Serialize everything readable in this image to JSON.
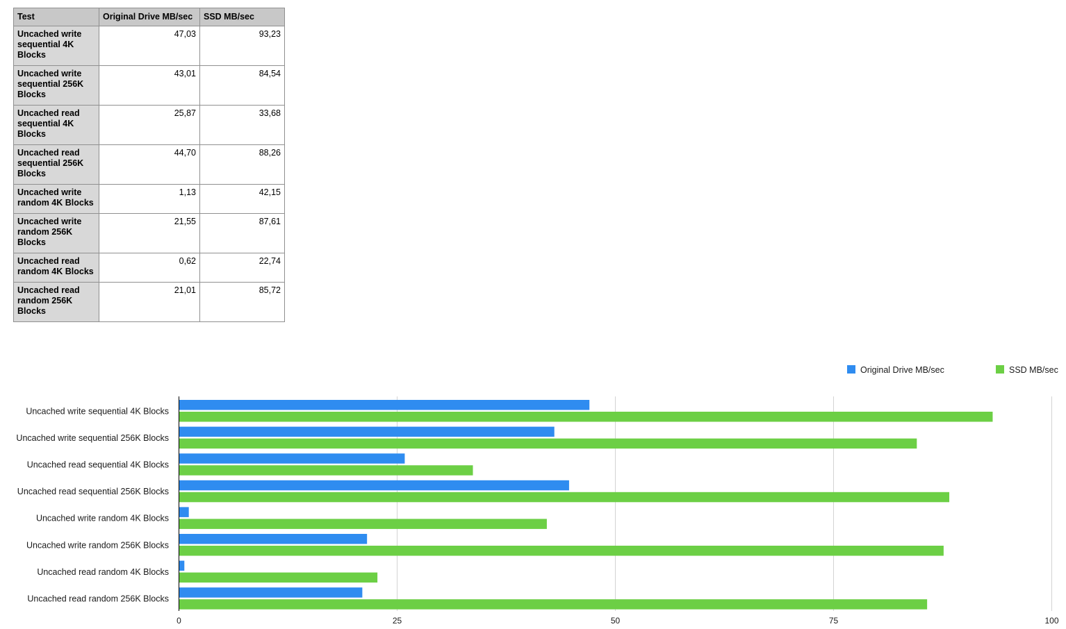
{
  "table": {
    "headers": [
      "Test",
      "Original Drive MB/sec",
      "SSD MB/sec"
    ],
    "rows": [
      {
        "test": [
          "Uncached write",
          "sequential 4K",
          "Blocks"
        ],
        "original": "47,03",
        "ssd": "93,23"
      },
      {
        "test": [
          "Uncached write",
          "sequential 256K",
          "Blocks"
        ],
        "original": "43,01",
        "ssd": "84,54"
      },
      {
        "test": [
          "Uncached read",
          "sequential 4K",
          "Blocks"
        ],
        "original": "25,87",
        "ssd": "33,68"
      },
      {
        "test": [
          "Uncached read",
          "sequential 256K",
          "Blocks"
        ],
        "original": "44,70",
        "ssd": "88,26"
      },
      {
        "test": [
          "Uncached write",
          "random 4K Blocks"
        ],
        "original": "1,13",
        "ssd": "42,15"
      },
      {
        "test": [
          "Uncached write",
          "random 256K",
          "Blocks"
        ],
        "original": "21,55",
        "ssd": "87,61"
      },
      {
        "test": [
          "Uncached read",
          "random 4K Blocks"
        ],
        "original": "0,62",
        "ssd": "22,74"
      },
      {
        "test": [
          "Uncached read",
          "random 256K",
          "Blocks"
        ],
        "original": "21,01",
        "ssd": "85,72"
      }
    ]
  },
  "chart_data": {
    "type": "bar",
    "orientation": "horizontal",
    "title": "",
    "xlabel": "",
    "ylabel": "",
    "categories": [
      "Uncached write sequential 4K Blocks",
      "Uncached write sequential 256K Blocks",
      "Uncached read sequential 4K Blocks",
      "Uncached read sequential 256K Blocks",
      "Uncached write random 4K Blocks",
      "Uncached write random 256K Blocks",
      "Uncached read random 4K Blocks",
      "Uncached read random 256K Blocks"
    ],
    "series": [
      {
        "name": "Original Drive MB/sec",
        "color": "#2f8cf0",
        "values": [
          47.03,
          43.01,
          25.87,
          44.7,
          1.13,
          21.55,
          0.62,
          21.01
        ]
      },
      {
        "name": "SSD MB/sec",
        "color": "#6ccf45",
        "values": [
          93.23,
          84.54,
          33.68,
          88.26,
          42.15,
          87.61,
          22.74,
          85.72
        ]
      }
    ],
    "xlim": [
      0,
      100
    ],
    "xticks": [
      0,
      25,
      50,
      75,
      100
    ],
    "grid": true,
    "legend_position": "top-right"
  }
}
